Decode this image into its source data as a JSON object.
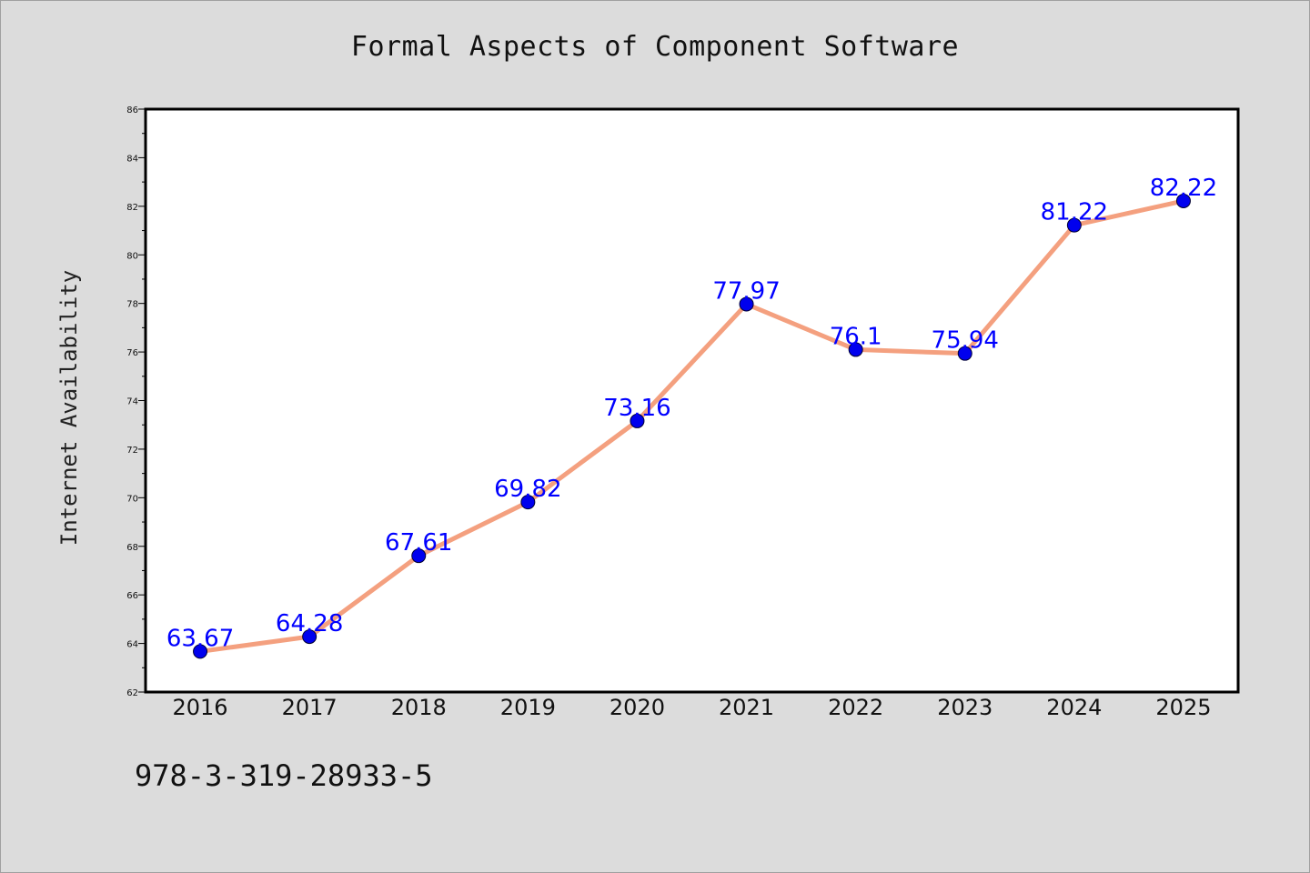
{
  "chart_data": {
    "type": "line",
    "title": "Formal Aspects of Component Software",
    "xlabel": "",
    "ylabel": "Internet Availability",
    "categories": [
      "2016",
      "2017",
      "2018",
      "2019",
      "2020",
      "2021",
      "2022",
      "2023",
      "2024",
      "2025"
    ],
    "series": [
      {
        "values": [
          63.67,
          64.28,
          67.61,
          69.82,
          73.16,
          77.97,
          76.1,
          75.94,
          81.22,
          82.22
        ],
        "line_color": "#f4a07f",
        "marker_color": "#0000ee"
      }
    ],
    "data_labels": [
      "63.67",
      "64.28",
      "67.61",
      "69.82",
      "73.16",
      "77.97",
      "76.1",
      "75.94",
      "81.22",
      "82.22"
    ],
    "ylim": [
      62,
      86
    ],
    "yticks": [
      "62",
      "64",
      "66",
      "68",
      "70",
      "72",
      "74",
      "76",
      "78",
      "80",
      "82",
      "84",
      "86"
    ],
    "grid": false,
    "legend": "none",
    "footer": "978-3-319-28933-5"
  }
}
